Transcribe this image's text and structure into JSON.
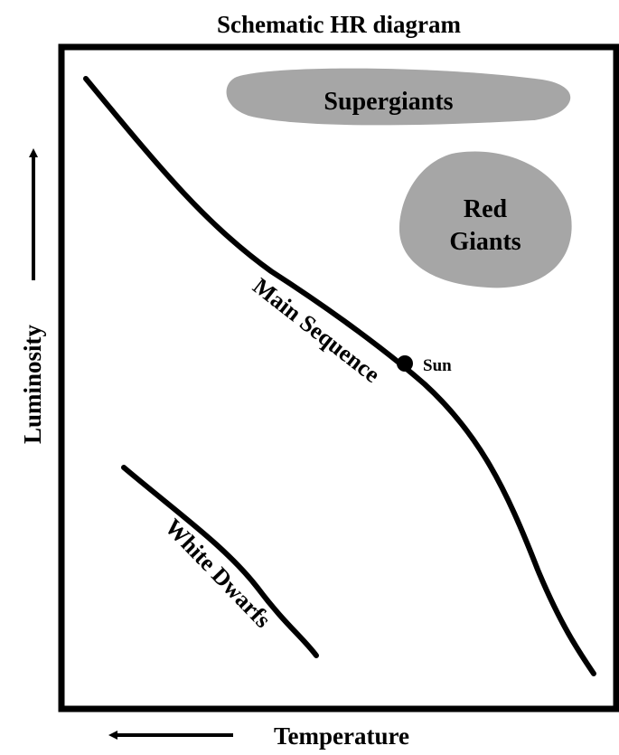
{
  "title": "Schematic HR diagram",
  "axes": {
    "y_label": "Luminosity",
    "x_label": "Temperature"
  },
  "regions": [
    {
      "lines": [
        "Supergiants"
      ]
    },
    {
      "lines": [
        "Red",
        "Giants"
      ]
    }
  ],
  "curves": [
    {
      "label": "Main Sequence"
    },
    {
      "label": "White Dwarfs"
    }
  ],
  "marker": {
    "label": "Sun"
  }
}
